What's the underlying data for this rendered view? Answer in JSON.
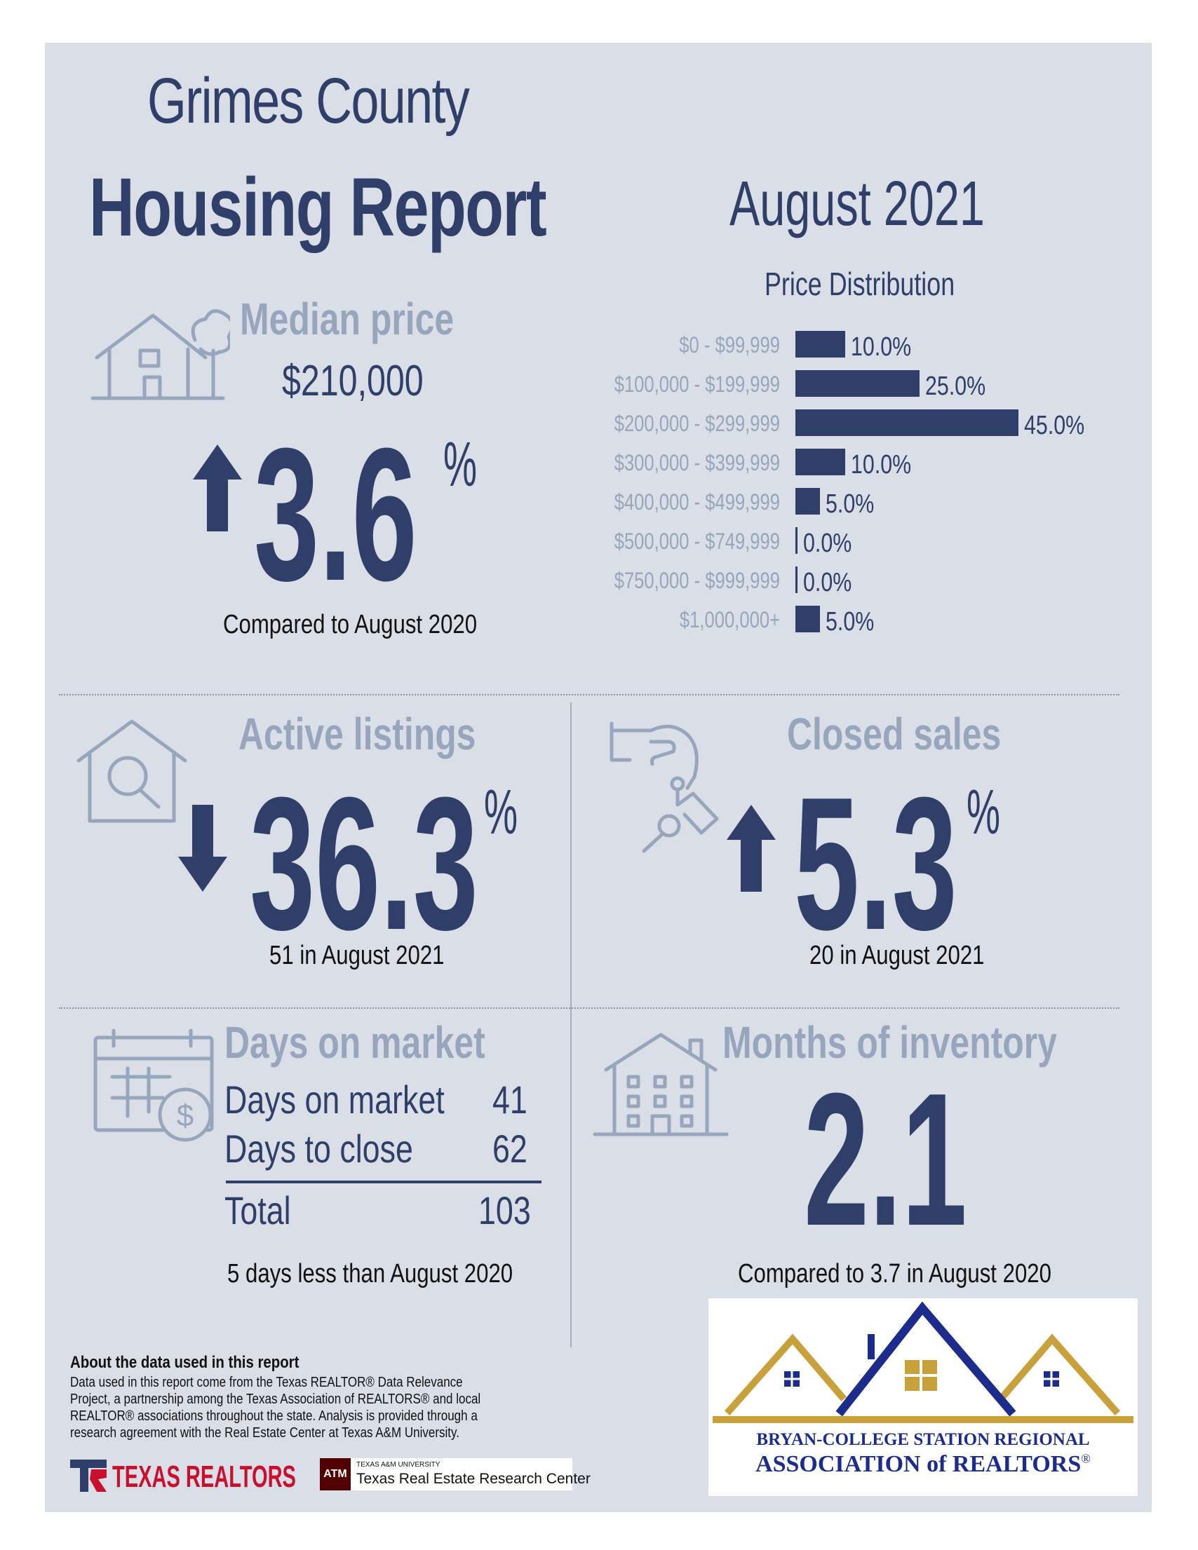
{
  "header": {
    "title_line1": "Grimes County",
    "title_line2": "Housing Report",
    "month": "August 2021"
  },
  "median_price": {
    "heading": "Median price",
    "value": "$210,000",
    "change": "3.6",
    "percent_sign": "%",
    "direction": "up",
    "caption": "Compared to August 2020",
    "icon": "house-tree-icon"
  },
  "chart_data": {
    "type": "bar",
    "title": "Price Distribution",
    "categories": [
      "$0 - $99,999",
      "$100,000 - $199,999",
      "$200,000 - $299,999",
      "$300,000 - $399,999",
      "$400,000 - $499,999",
      "$500,000 - $749,999",
      "$750,000 - $999,999",
      "$1,000,000+"
    ],
    "values": [
      10.0,
      25.0,
      45.0,
      10.0,
      5.0,
      0.0,
      0.0,
      5.0
    ],
    "value_labels": [
      "10.0%",
      "25.0%",
      "45.0%",
      "10.0%",
      "5.0%",
      "0.0%",
      "0.0%",
      "5.0%"
    ],
    "orientation": "horizontal",
    "xlim": [
      0,
      45
    ]
  },
  "active_listings": {
    "heading": "Active listings",
    "change": "36.3",
    "percent_sign": "%",
    "direction": "down",
    "caption": "51 in August 2021",
    "icon": "house-search-icon"
  },
  "closed_sales": {
    "heading": "Closed sales",
    "change": "5.3",
    "percent_sign": "%",
    "direction": "up",
    "caption": "20 in August 2021",
    "icon": "hand-keys-icon"
  },
  "days_on_market": {
    "heading": "Days on market",
    "rows": [
      {
        "label": "Days on market",
        "value": "41"
      },
      {
        "label": "Days to close",
        "value": "62"
      }
    ],
    "total_label": "Total",
    "total_value": "103",
    "caption": "5 days less than August 2020",
    "icon": "calendar-dollar-icon"
  },
  "months_inventory": {
    "heading": "Months of inventory",
    "value": "2.1",
    "caption": "Compared to 3.7 in August 2020",
    "icon": "apartment-building-icon"
  },
  "about": {
    "heading": "About the data used in this report",
    "body": "Data used in this report come from the Texas REALTOR® Data Relevance Project, a partnership among the Texas Association of REALTORS® and local REALTOR® associations throughout the state. Analysis is provided through a research agreement with the Real Estate Center at Texas A&M University."
  },
  "logos": {
    "texas_realtors": "TEXAS REALTORS",
    "tamu_small": "TEXAS A&M UNIVERSITY",
    "tamu_center": "Texas Real Estate Research Center",
    "tamu_mark": "ATM",
    "bcs_line1": "BRYAN-COLLEGE STATION REGIONAL",
    "bcs_line2": "ASSOCIATION of REALTORS",
    "bcs_reg": "®"
  },
  "colors": {
    "navy": "#2f3f69",
    "light_blue_gray": "#97a6bd",
    "panel_bg": "#dadfe7",
    "gold": "#c9a13a",
    "realtors_red": "#c8102e"
  }
}
